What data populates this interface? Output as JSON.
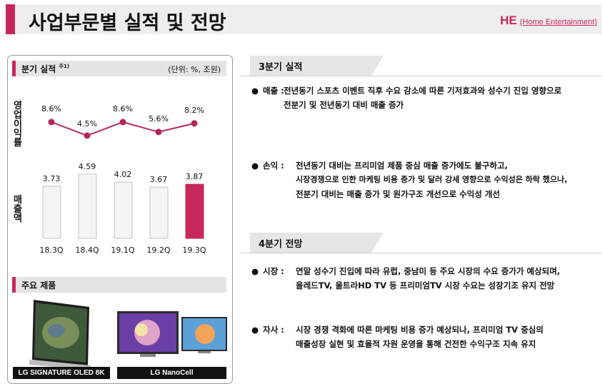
{
  "header": {
    "title": "사업부문별 실적 및 전망",
    "division_code": "HE",
    "division_name": "(Home Entertainment)"
  },
  "left_panel": {
    "section_title": "분기 실적",
    "section_note": "주1)",
    "unit": "(단위: %, 조원)",
    "op_margin_label": "영업이익률",
    "sales_label": "매출액",
    "products_title": "주요 제품",
    "products": [
      {
        "label": "LG SIGNATURE OLED 8K"
      },
      {
        "label": "LG NanoCell"
      }
    ]
  },
  "chart_data": [
    {
      "type": "line",
      "categories": [
        "18.3Q",
        "18.4Q",
        "19.1Q",
        "19.2Q",
        "19.3Q"
      ],
      "series": [
        {
          "values": [
            8.6,
            4.5,
            8.6,
            5.6,
            8.2
          ]
        }
      ],
      "data_labels": [
        "8.6%",
        "4.5%",
        "8.6%",
        "5.6%",
        "8.2%"
      ],
      "color": "#b5265a",
      "ylabel": "영업이익률",
      "grid": false
    },
    {
      "type": "bar",
      "categories": [
        "18.3Q",
        "18.4Q",
        "19.1Q",
        "19.2Q",
        "19.3Q"
      ],
      "values": [
        3.73,
        4.59,
        4.02,
        3.67,
        3.87
      ],
      "data_labels": [
        "3.73",
        "4.59",
        "4.02",
        "3.67",
        "3.87"
      ],
      "highlight_index": 4,
      "bar_color": "#f4f4f4",
      "highlight_color": "#c7285a",
      "ylabel": "매출액",
      "ylim": [
        0,
        4.59
      ],
      "grid": false
    }
  ],
  "q3_results": {
    "title": "3분기 실적",
    "items": [
      {
        "label": "매출 :",
        "lines": [
          "전년동기 스포츠 이벤트 직후 수요 감소에 따른 기저효과와 성수기 진입 영향으로",
          "전분기 및 전년동기 대비 매출 증가"
        ]
      },
      {
        "label": "손익 :",
        "lines": [
          "전년동기 대비는 프리미엄 제품 중심 매출 증가에도 불구하고,",
          "시장경쟁으로 인한  마케팅 비용 증가 및 달러 강세 영향으로 수익성은 하락 했으나,",
          "전분기 대비는 매출 증가 및 원가구조 개선으로 수익성 개선"
        ]
      }
    ]
  },
  "q4_outlook": {
    "title": "4분기 전망",
    "items": [
      {
        "label": "시장 :",
        "lines": [
          "연말 성수기 진입에 따라 유럽, 중남미 등 주요 시장의 수요 증가가 예상되며,",
          "올레드TV, 울트라HD TV 등 프리미엄TV 시장 수요는 성장기조 유지 전망"
        ]
      },
      {
        "label": "자사 :",
        "lines": [
          "시장 경쟁 격화에 따른 마케팅 비용 증가 예상되나, 프리미엄 TV 중심의",
          "매출성장 실현 및 효율적 자원 운영을 통해 건전한 수익구조 지속 유지"
        ]
      }
    ]
  },
  "colors": {
    "accent": "#c7285a",
    "header_bg": "#eeeeee",
    "line": "#b5265a"
  },
  "icons": {
    "bullet": "●"
  }
}
